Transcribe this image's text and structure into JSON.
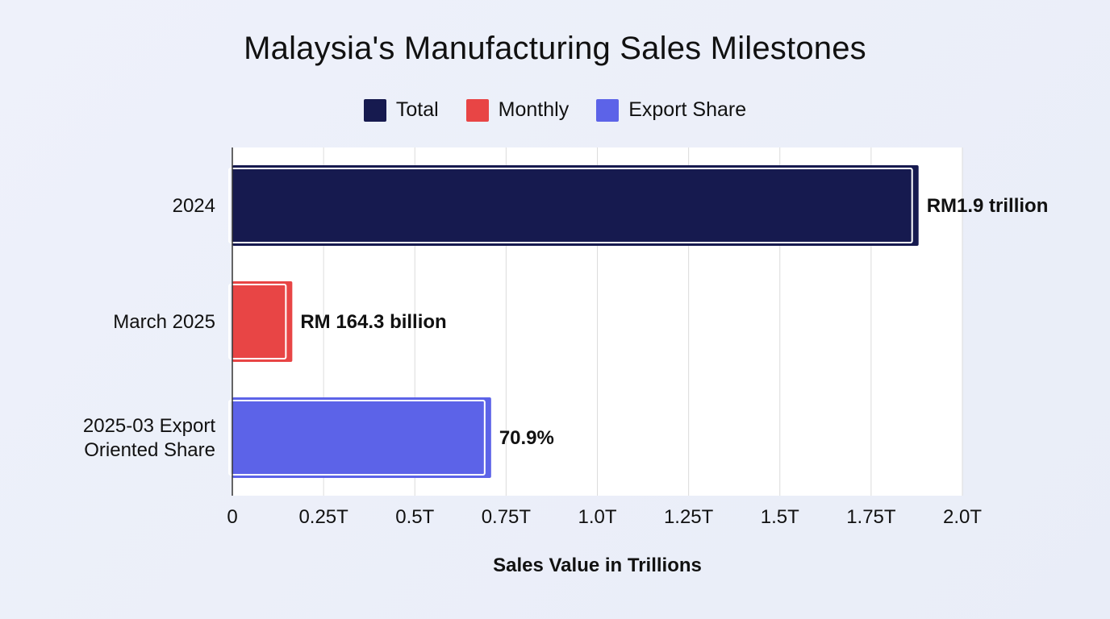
{
  "chart_data": {
    "type": "bar",
    "orientation": "horizontal",
    "title": "Malaysia's Manufacturing Sales Milestones",
    "xlabel": "Sales Value in Trillions",
    "ylabel": "",
    "xlim": [
      0,
      2.0
    ],
    "x_ticks": [
      0,
      0.25,
      0.5,
      0.75,
      1.0,
      1.25,
      1.5,
      1.75,
      2.0
    ],
    "x_tick_labels": [
      "0",
      "0.25T",
      "0.5T",
      "0.75T",
      "1.0T",
      "1.25T",
      "1.5T",
      "1.75T",
      "2.0T"
    ],
    "grid": "vertical",
    "legend_position": "top-center",
    "legend": [
      {
        "name": "Total",
        "color": "#161a4f"
      },
      {
        "name": "Monthly",
        "color": "#e84545"
      },
      {
        "name": "Export Share",
        "color": "#5c63e8"
      }
    ],
    "bars": [
      {
        "category_lines": [
          "2024"
        ],
        "value": 1.88,
        "label": "RM1.9 trillion",
        "series": "Total",
        "color": "#161a4f"
      },
      {
        "category_lines": [
          "March 2025"
        ],
        "value": 0.1643,
        "label": "RM 164.3 billion",
        "series": "Monthly",
        "color": "#e84545"
      },
      {
        "category_lines": [
          "2025-03 Export",
          "Oriented Share"
        ],
        "value": 0.709,
        "label": "70.9%",
        "series": "Export Share",
        "color": "#5c63e8"
      }
    ]
  }
}
